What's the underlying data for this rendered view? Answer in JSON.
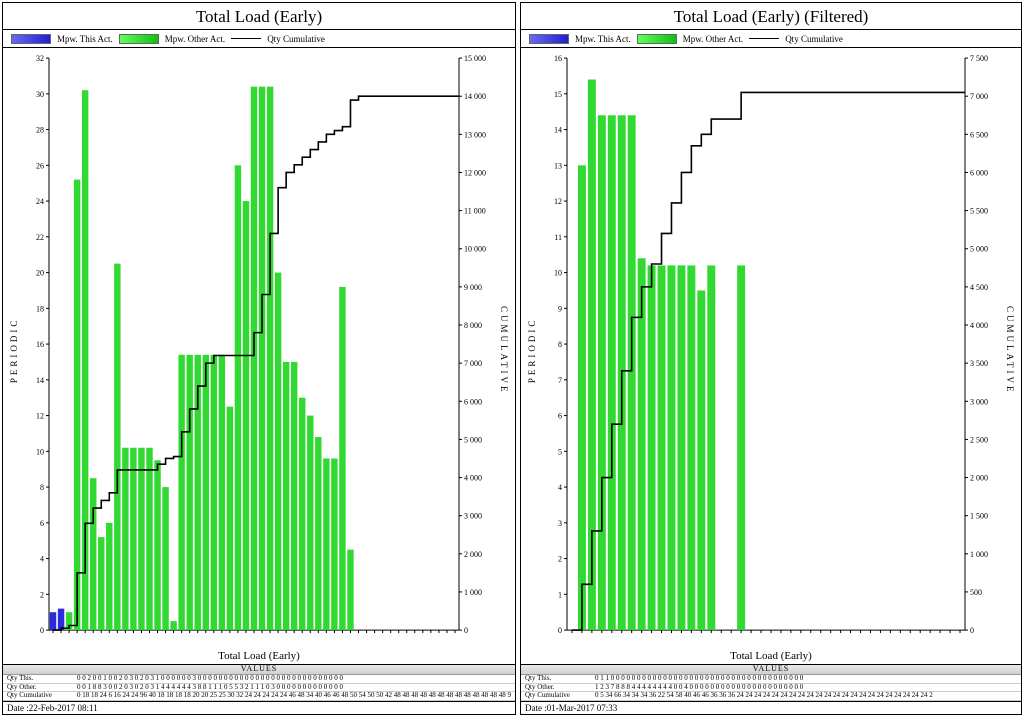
{
  "leftPanel": {
    "title": "Total Load (Early)",
    "legend": {
      "mpwThis": "Mpw. This Act.",
      "mpwOther": "Mpw. Other Act.",
      "cum": "Qty Cumulative",
      "blueGrad": [
        "#6a6af5",
        "#2020d0"
      ],
      "greenGrad": [
        "#60ff60",
        "#10c010"
      ]
    },
    "yLeftLabel": "PERIODIC",
    "yRightLabel": "CUMULATIVE",
    "chart": {
      "type": "bar+line",
      "yLeft": {
        "min": 0,
        "max": 32,
        "ticks": [
          0,
          2,
          4,
          6,
          8,
          10,
          12,
          14,
          16,
          18,
          20,
          22,
          24,
          26,
          28,
          30,
          32
        ]
      },
      "yRight": {
        "min": 0,
        "max": 15000,
        "ticks": [
          0,
          1000,
          2000,
          3000,
          4000,
          5000,
          6000,
          7000,
          8000,
          9000,
          10000,
          11000,
          12000,
          13000,
          14000,
          15000
        ],
        "ticklabels": [
          "0",
          "1 000",
          "2 000",
          "3 000",
          "4 000",
          "5 000",
          "6 000",
          "7 000",
          "8 000",
          "9 000",
          "10 000",
          "11 000",
          "12 000",
          "13 000",
          "14 000",
          "15 000"
        ]
      },
      "bar_color": "#33d933",
      "blue_bar_color": "#2a2ae0",
      "line_color": "#000000",
      "background": "#ffffff",
      "bars": [
        0,
        0.5,
        1,
        25.2,
        30.2,
        8.5,
        5.2,
        6,
        20.5,
        10.2,
        10.2,
        10.2,
        10.2,
        9.5,
        8,
        0.5,
        15.4,
        15.4,
        15.4,
        15.4,
        15.4,
        15.4,
        12.5,
        26,
        24,
        30.4,
        30.4,
        30.4,
        20,
        15,
        15,
        13,
        12,
        10.8,
        9.6,
        9.6,
        19.2,
        4.5,
        0,
        0,
        0,
        0,
        0,
        0,
        0,
        0,
        0,
        0,
        0,
        0,
        0
      ],
      "blueBars": [
        1,
        1.2
      ],
      "cum": [
        0,
        50,
        120,
        1500,
        2800,
        3200,
        3400,
        3600,
        4200,
        4200,
        4200,
        4200,
        4200,
        4350,
        4500,
        4550,
        5200,
        5800,
        6400,
        7000,
        7200,
        7200,
        7200,
        7200,
        7200,
        7800,
        8800,
        10400,
        11600,
        12000,
        12200,
        12400,
        12600,
        12800,
        13000,
        13100,
        13200,
        13900,
        14000,
        14000,
        14000,
        14000,
        14000,
        14000,
        14000,
        14000,
        14000,
        14000,
        14000,
        14000,
        14000
      ],
      "xcount": 51
    },
    "etc": "Total Load (Early)",
    "values": {
      "title": "VALUES",
      "rows": [
        {
          "label": "Qty This.",
          "text": "0 0 2 0 0 1 0 0 2 0 3 0 2 0 3 1 0 0 0 0 0 0 3 0 0 0 0 0 0 0 0 0 0 0 0 0 0 0 0 0 0 0 0 0 0 0 0 0 0 0 0"
        },
        {
          "label": "Qty Other.",
          "text": "0 0 1 8 8 3 0 0 2 0 3 0 2 0 3 1 4 4 4 4 4 4 3 8 8 1 1 1 0 5 5 3 2 1 1 1 0 3 0 0 0 0 0 0 0 0 0 0 0 0 0"
        },
        {
          "label": "Qty Cumulative",
          "text": "0 18 18 24 6 16 24 24 96 40 18 18 18 18 20 20 25 25 30 32 24 24 24 24 24 46 48 34 40 46 46 48 50 54 50 50 42 48 48 48 48 48 48 48 48 48 48 48 48 48 9"
        }
      ]
    },
    "date": "Date :22-Feb-2017 08:11"
  },
  "rightPanel": {
    "title": "Total Load (Early) (Filtered)",
    "legend": {
      "mpwThis": "Mpw. This Act.",
      "mpwOther": "Mpw. Other Act.",
      "cum": "Qty Cumulative",
      "blueGrad": [
        "#6a6af5",
        "#2020d0"
      ],
      "greenGrad": [
        "#60ff60",
        "#10c010"
      ]
    },
    "yLeftLabel": "PERIODIC",
    "yRightLabel": "CUMULATIVE",
    "chart": {
      "type": "bar+line",
      "yLeft": {
        "min": 0,
        "max": 16,
        "ticks": [
          0,
          1,
          2,
          3,
          4,
          5,
          6,
          7,
          8,
          9,
          10,
          11,
          12,
          13,
          14,
          15,
          16
        ]
      },
      "yRight": {
        "min": 0,
        "max": 7500,
        "ticks": [
          0,
          500,
          1000,
          1500,
          2000,
          2500,
          3000,
          3500,
          4000,
          4500,
          5000,
          5500,
          6000,
          6500,
          7000,
          7500
        ],
        "ticklabels": [
          "0",
          "500",
          "1 000",
          "1 500",
          "2 000",
          "2 500",
          "3 000",
          "3 500",
          "4 000",
          "4 500",
          "5 000",
          "5 500",
          "6 000",
          "6 500",
          "7 000",
          "7 500"
        ]
      },
      "bar_color": "#33d933",
      "line_color": "#000000",
      "background": "#ffffff",
      "bars": [
        0,
        13,
        15.4,
        14.4,
        14.4,
        14.4,
        14.4,
        10.4,
        10.2,
        10.2,
        10.2,
        10.2,
        10.2,
        9.5,
        10.2,
        0,
        0,
        10.2,
        0,
        0,
        0,
        0,
        0,
        0,
        0,
        0,
        0,
        0,
        0,
        0,
        0,
        0,
        0,
        0,
        0,
        0,
        0,
        0,
        0,
        0
      ],
      "cum": [
        0,
        600,
        1300,
        2000,
        2700,
        3400,
        4100,
        4500,
        4800,
        5200,
        5600,
        6000,
        6350,
        6500,
        6700,
        6700,
        6700,
        7050,
        7050,
        7050,
        7050,
        7050,
        7050,
        7050,
        7050,
        7050,
        7050,
        7050,
        7050,
        7050,
        7050,
        7050,
        7050,
        7050,
        7050,
        7050,
        7050,
        7050,
        7050,
        7050
      ],
      "xcount": 40
    },
    "etc": "Total Load (Early)",
    "values": {
      "title": "VALUES",
      "rows": [
        {
          "label": "Qty This.",
          "text": "0 1 1 0 0 0 0 0 0 0 0 0 0 0 0 0 0 0 0 0 0 0 0 0 0 0 0 0 0 0 0 0 0 0 0 0 0 0 0 0"
        },
        {
          "label": "Qty Other.",
          "text": "1 2 3 7 8 8 8 4 4 4 4 4 4 4 4 0 0 4 0 0 0 0 0 0 0 0 0 0 0 0 0 0 0 0 0 0 0 0 0 0"
        },
        {
          "label": "Qty Cumulative",
          "text": "0 5 34 66 34 34 34 36 22 54 58 40 46 46 36 36 36 24 24 24 24 24 24 24 24 24 24 24 24 24 24 24 24 24 24 24 24 24 24 2"
        }
      ]
    },
    "date": "Date :01-Mar-2017 07:33"
  }
}
